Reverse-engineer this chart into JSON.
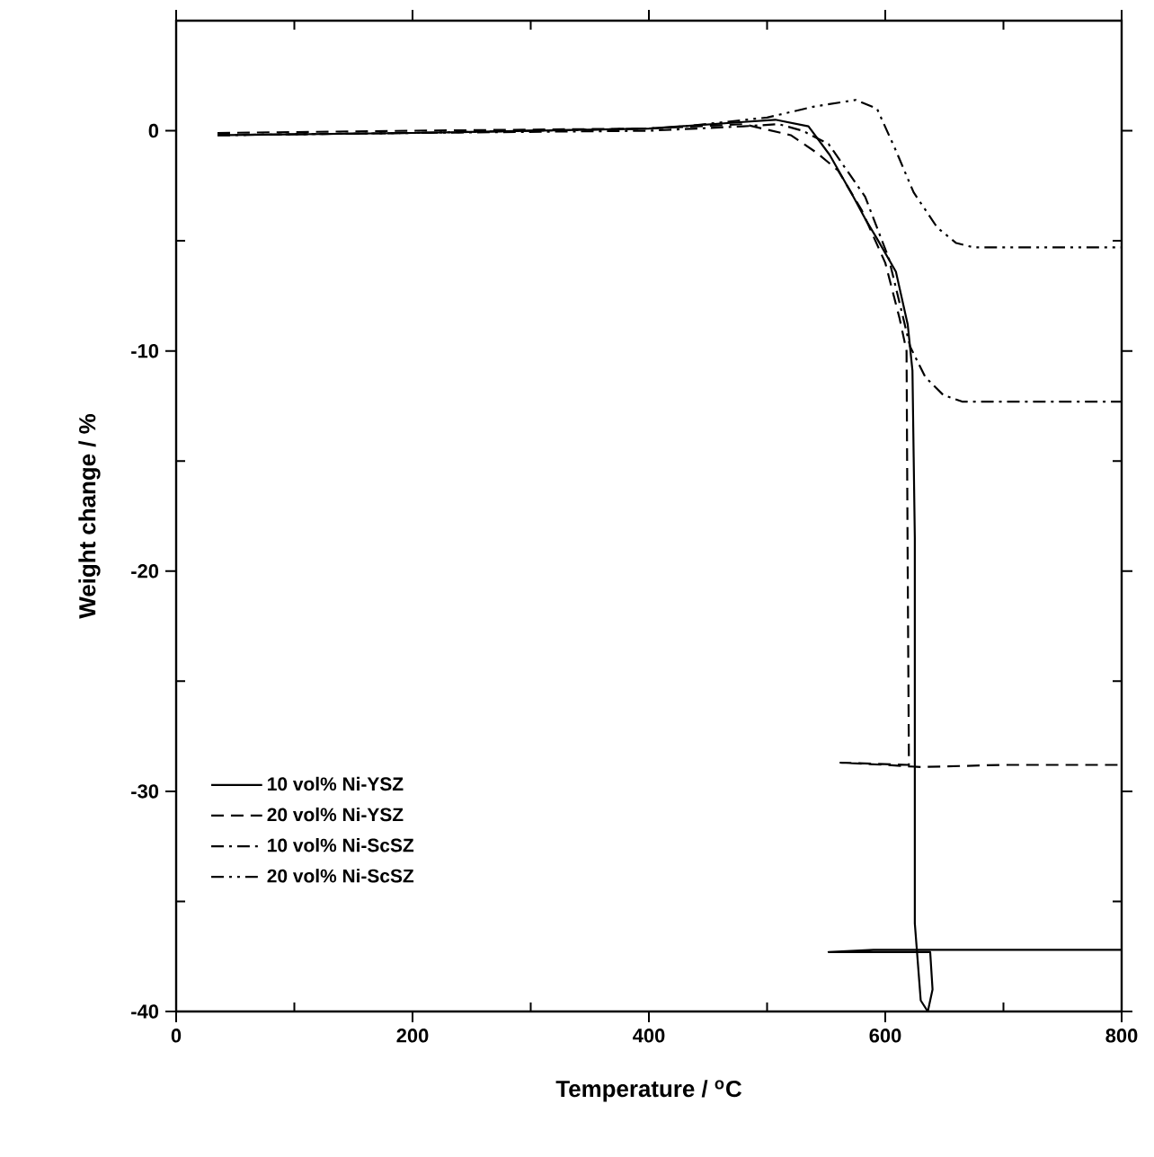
{
  "chart_data": {
    "type": "line",
    "xlabel": "Temperature / $^{o}$C",
    "ylabel": "Weight change / %",
    "xlim": [
      0,
      800
    ],
    "ylim": [
      -40,
      5
    ],
    "xticks": [
      0,
      {
        "value": 100,
        "label": null
      },
      200,
      {
        "value": 300,
        "label": null
      },
      400,
      {
        "value": 500,
        "label": null
      },
      600,
      {
        "value": 700,
        "label": null
      },
      800
    ],
    "yticks": [
      -40,
      {
        "value": -35,
        "label": null
      },
      -30,
      {
        "value": -25,
        "label": null
      },
      -20,
      {
        "value": -15,
        "label": null
      },
      -10,
      {
        "value": -5,
        "label": null
      },
      0
    ],
    "legend": "bottom left",
    "series": [
      {
        "name": "10 vol% Ni-YSZ",
        "color": "#000000",
        "line_style": "solid",
        "x": [
          35,
          200,
          400,
          480,
          507,
          535,
          553,
          573,
          583,
          593,
          609,
          619,
          623,
          625,
          625,
          630,
          636,
          640,
          638,
          552,
          590,
          700,
          800
        ],
        "values": [
          -0.2,
          -0.1,
          0.1,
          0.4,
          0.5,
          0.2,
          -1.1,
          -3,
          -4,
          -4.9,
          -6.4,
          -8.8,
          -10.9,
          -18.5,
          -36,
          -39.5,
          -40,
          -39,
          -37.3,
          -37.3,
          -37.2,
          -37.2,
          -37.2
        ]
      },
      {
        "name": "20 vol% Ni-YSZ",
        "color": "#000000",
        "line_style": "dashed",
        "x": [
          35,
          200,
          400,
          480,
          520,
          542,
          560,
          580,
          600,
          612,
          618,
          619,
          620,
          562,
          600,
          630,
          700,
          800
        ],
        "values": [
          -0.1,
          0,
          0.1,
          0.3,
          -0.2,
          -1,
          -1.8,
          -3.6,
          -6,
          -8.5,
          -10,
          -20,
          -28.8,
          -28.7,
          -28.8,
          -28.9,
          -28.8,
          -28.8
        ]
      },
      {
        "name": "10 vol% Ni-ScSZ",
        "color": "#000000",
        "line_style": "dashdot",
        "x": [
          35,
          200,
          400,
          480,
          510,
          530,
          552,
          583,
          603,
          621,
          634,
          649,
          665,
          700,
          800
        ],
        "values": [
          -0.2,
          -0.1,
          0,
          0.2,
          0.3,
          0,
          -0.6,
          -3,
          -5.8,
          -9.8,
          -11.2,
          -12,
          -12.3,
          -12.3,
          -12.3
        ]
      },
      {
        "name": "20 vol% Ni-ScSZ",
        "color": "#000000",
        "line_style": "dashdotdot",
        "x": [
          35,
          200,
          400,
          430,
          500,
          540,
          575,
          593,
          609,
          624,
          644,
          660,
          675,
          720,
          800
        ],
        "values": [
          -0.2,
          -0.1,
          0.1,
          0.2,
          0.6,
          1.1,
          1.4,
          1,
          -0.9,
          -2.8,
          -4.4,
          -5.1,
          -5.3,
          -5.3,
          -5.3
        ]
      }
    ]
  }
}
